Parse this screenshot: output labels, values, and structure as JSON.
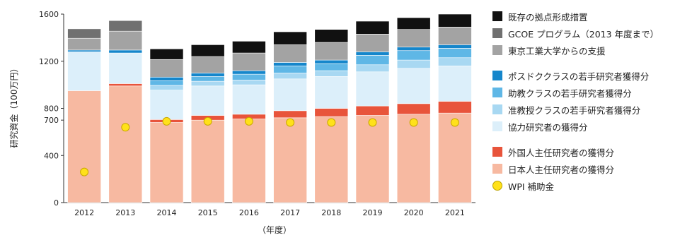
{
  "chart_data": {
    "type": "bar",
    "stacked": true,
    "ylabel": "研究資金（100万円）",
    "xlabel": "（年度）",
    "ylim": [
      0,
      1600
    ],
    "yticks": [
      0,
      400,
      700,
      800,
      1200,
      1600
    ],
    "grid": false,
    "legend_position": "right",
    "categories": [
      "2012",
      "2013",
      "2014",
      "2015",
      "2016",
      "2017",
      "2018",
      "2019",
      "2020",
      "2021"
    ],
    "series": [
      {
        "name": "日本人主任研究者の獲得分",
        "color": "#f7b9a1",
        "values": [
          950,
          990,
          680,
          700,
          710,
          720,
          730,
          740,
          750,
          760
        ]
      },
      {
        "name": "外国人主任研究者の獲得分",
        "color": "#e8543b",
        "values": [
          0,
          20,
          25,
          40,
          40,
          60,
          70,
          80,
          90,
          100
        ]
      },
      {
        "name": "協力研究者の獲得分",
        "color": "#dceffa",
        "values": [
          330,
          260,
          250,
          250,
          250,
          270,
          270,
          290,
          300,
          300
        ]
      },
      {
        "name": "准教授クラスの若手研究者獲得分",
        "color": "#a8d8f2",
        "values": [
          0,
          0,
          40,
          40,
          40,
          50,
          50,
          60,
          70,
          70
        ]
      },
      {
        "name": "助教クラスの若手研究者獲得分",
        "color": "#5fb7e6",
        "values": [
          0,
          0,
          40,
          40,
          50,
          60,
          60,
          80,
          80,
          80
        ]
      },
      {
        "name": "ポスドククラスの若手研究者獲得分",
        "color": "#1586cb",
        "values": [
          15,
          25,
          30,
          30,
          30,
          30,
          30,
          30,
          30,
          30
        ]
      },
      {
        "name": "東京工業大学からの支援",
        "color": "#a3a3a3",
        "values": [
          100,
          160,
          150,
          140,
          150,
          150,
          150,
          150,
          150,
          150
        ]
      },
      {
        "name": "GCOE プログラム（2013 年度まで）",
        "color": "#707070",
        "values": [
          80,
          90,
          0,
          0,
          0,
          0,
          0,
          0,
          0,
          0
        ]
      },
      {
        "name": "既存の拠点形成措置",
        "color": "#111111",
        "values": [
          0,
          0,
          90,
          100,
          100,
          110,
          110,
          110,
          100,
          110
        ]
      }
    ],
    "points": {
      "name": "WPI 補助金",
      "color": "#ffe11a",
      "values": [
        260,
        640,
        690,
        690,
        690,
        680,
        680,
        680,
        680,
        680
      ]
    },
    "legend_order": [
      8,
      7,
      6,
      null,
      5,
      4,
      3,
      2,
      null,
      1,
      0,
      "points"
    ]
  }
}
